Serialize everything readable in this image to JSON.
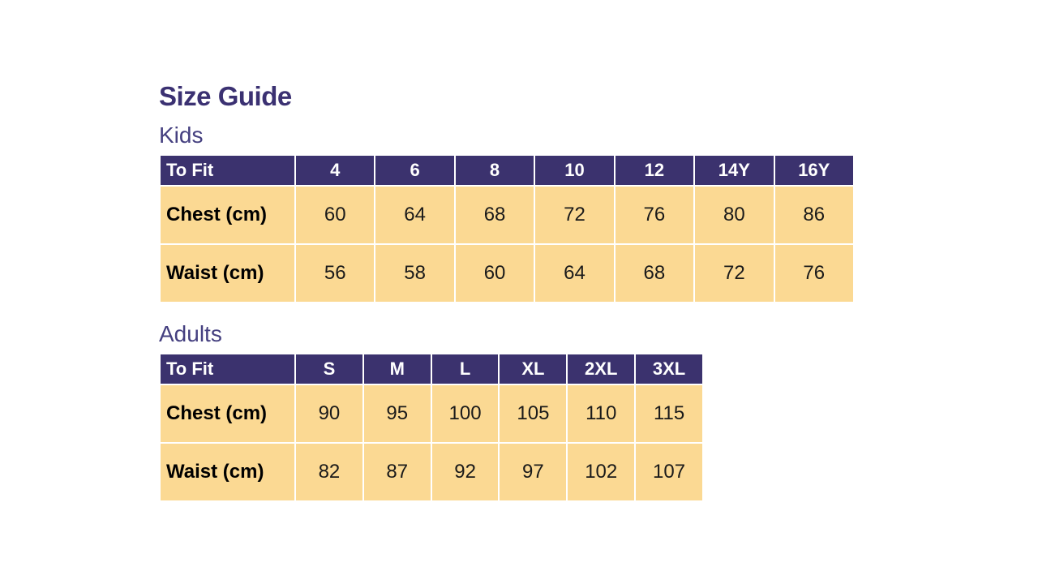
{
  "page": {
    "title": "Size Guide"
  },
  "colors": {
    "title_text": "#3b3172",
    "section_heading_text": "#454080",
    "table_header_bg": "#3b326e",
    "table_header_text": "#ffffff",
    "table_cell_bg": "#fbd993",
    "table_cell_text": "#1a1a1a",
    "background": "#ffffff"
  },
  "sections": [
    {
      "heading": "Kids",
      "table": {
        "corner_label": "To Fit",
        "columns": [
          "4",
          "6",
          "8",
          "10",
          "12",
          "14Y",
          "16Y"
        ],
        "rows": [
          {
            "label": "Chest (cm)",
            "values": [
              "60",
              "64",
              "68",
              "72",
              "76",
              "80",
              "86"
            ]
          },
          {
            "label": "Waist (cm)",
            "values": [
              "56",
              "58",
              "60",
              "64",
              "68",
              "72",
              "76"
            ]
          }
        ]
      }
    },
    {
      "heading": "Adults",
      "table": {
        "corner_label": "To Fit",
        "columns": [
          "S",
          "M",
          "L",
          "XL",
          "2XL",
          "3XL"
        ],
        "rows": [
          {
            "label": "Chest (cm)",
            "values": [
              "90",
              "95",
              "100",
              "105",
              "110",
              "115"
            ]
          },
          {
            "label": "Waist (cm)",
            "values": [
              "82",
              "87",
              "92",
              "97",
              "102",
              "107"
            ]
          }
        ]
      }
    }
  ]
}
